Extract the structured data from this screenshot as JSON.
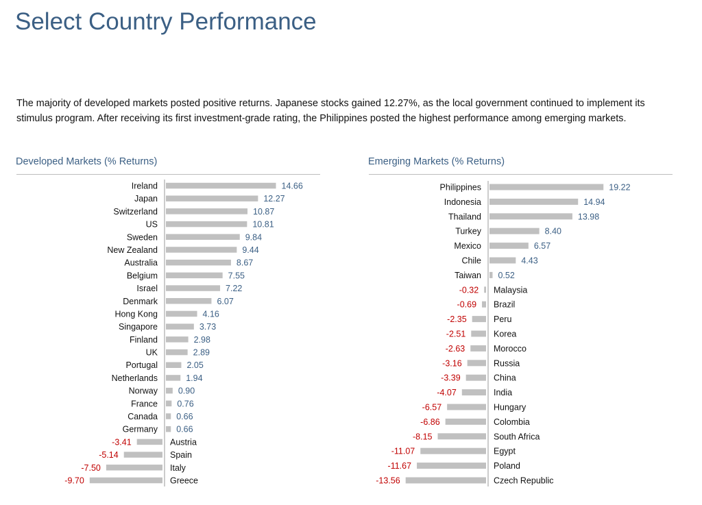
{
  "page": {
    "title": "Select Country Performance",
    "intro": "The majority of developed markets posted positive returns. Japanese stocks gained 12.27%, as the local government continued to implement its stimulus program. After receiving its first investment-grade rating, the Philippines posted the highest performance among emerging markets."
  },
  "colors": {
    "title": "#3b5f84",
    "bar": "#c0c0c0",
    "positive_value": "#3b5f84",
    "negative_value": "#c00000",
    "axis": "#9a9a9a"
  },
  "chart_data": [
    {
      "type": "bar",
      "orientation": "horizontal",
      "title": "Developed Markets (% Returns)",
      "categories": [
        "Ireland",
        "Japan",
        "Switzerland",
        "US",
        "Sweden",
        "New Zealand",
        "Australia",
        "Belgium",
        "Israel",
        "Denmark",
        "Hong Kong",
        "Singapore",
        "Finland",
        "UK",
        "Portugal",
        "Netherlands",
        "Norway",
        "France",
        "Canada",
        "Germany",
        "Austria",
        "Spain",
        "Italy",
        "Greece"
      ],
      "values": [
        14.66,
        12.27,
        10.87,
        10.81,
        9.84,
        9.44,
        8.67,
        7.55,
        7.22,
        6.07,
        4.16,
        3.73,
        2.98,
        2.89,
        2.05,
        1.94,
        0.9,
        0.76,
        0.66,
        0.66,
        -3.41,
        -5.14,
        -7.5,
        -9.7
      ],
      "labels": [
        "14.66",
        "12.27",
        "10.87",
        "10.81",
        "9.84",
        "9.44",
        "8.67",
        "7.55",
        "7.22",
        "6.07",
        "4.16",
        "3.73",
        "2.98",
        "2.89",
        "2.05",
        "1.94",
        "0.90",
        "0.76",
        "0.66",
        "0.66",
        "-3.41",
        "-5.14",
        "-7.50",
        "-9.70"
      ]
    },
    {
      "type": "bar",
      "orientation": "horizontal",
      "title": "Emerging Markets (% Returns)",
      "categories": [
        "Philippines",
        "Indonesia",
        "Thailand",
        "Turkey",
        "Mexico",
        "Chile",
        "Taiwan",
        "Malaysia",
        "Brazil",
        "Peru",
        "Korea",
        "Morocco",
        "Russia",
        "China",
        "India",
        "Hungary",
        "Colombia",
        "South Africa",
        "Egypt",
        "Poland",
        "Czech Republic"
      ],
      "values": [
        19.22,
        14.94,
        13.98,
        8.4,
        6.57,
        4.43,
        0.52,
        -0.32,
        -0.69,
        -2.35,
        -2.51,
        -2.63,
        -3.16,
        -3.39,
        -4.07,
        -6.57,
        -6.86,
        -8.15,
        -11.07,
        -11.67,
        -13.56
      ],
      "labels": [
        "19.22",
        "14.94",
        "13.98",
        "8.40",
        "6.57",
        "4.43",
        "0.52",
        "-0.32",
        "-0.69",
        "-2.35",
        "-2.51",
        "-2.63",
        "-3.16",
        "-3.39",
        "-4.07",
        "-6.57",
        "-6.86",
        "-8.15",
        "-11.07",
        "-11.67",
        "-13.56"
      ]
    }
  ]
}
